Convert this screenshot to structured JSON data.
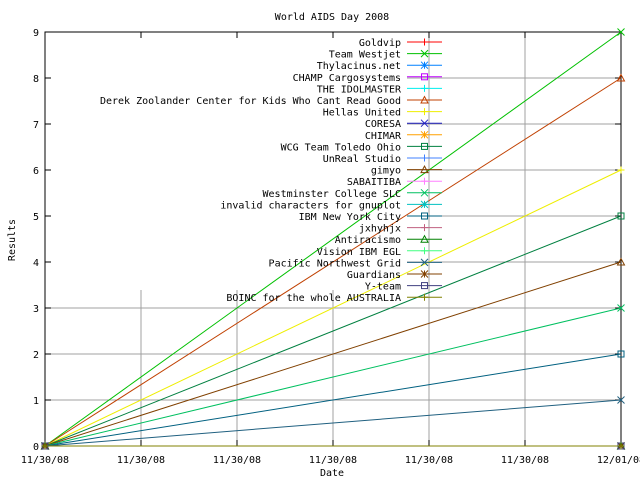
{
  "chart_data": {
    "type": "line",
    "title": "World AIDS Day 2008",
    "xlabel": "Date",
    "ylabel": "Results",
    "x_ticks": [
      "11/30/08",
      "11/30/08",
      "11/30/08",
      "11/30/08",
      "11/30/08",
      "11/30/08",
      "12/01/08"
    ],
    "y_ticks": [
      "0",
      "1",
      "2",
      "3",
      "4",
      "5",
      "6",
      "7",
      "8",
      "9"
    ],
    "ylim": [
      0,
      9
    ],
    "xlim": [
      0,
      1
    ],
    "grid": true,
    "legend_position": "top-right inside",
    "series": [
      {
        "name": "Goldvip",
        "color": "#ff0000",
        "marker": "plus",
        "x": [
          0,
          1
        ],
        "y": [
          0,
          0
        ]
      },
      {
        "name": "Team Westjet",
        "color": "#00c000",
        "marker": "cross",
        "x": [
          0,
          1
        ],
        "y": [
          0,
          9
        ]
      },
      {
        "name": "Thylacinus.net",
        "color": "#0080ff",
        "marker": "star",
        "x": [
          0,
          1
        ],
        "y": [
          0,
          0
        ]
      },
      {
        "name": "CHAMP Cargosystems",
        "color": "#c000ff",
        "marker": "box",
        "x": [
          0,
          1
        ],
        "y": [
          0,
          0
        ]
      },
      {
        "name": "THE IDOLMASTER",
        "color": "#00eeee",
        "marker": "plus",
        "x": [
          0,
          1
        ],
        "y": [
          0,
          0
        ]
      },
      {
        "name": "Derek Zoolander Center for Kids Who Cant Read Good",
        "color": "#c04000",
        "marker": "triangle",
        "x": [
          0,
          1
        ],
        "y": [
          0,
          8
        ]
      },
      {
        "name": "Hellas United",
        "color": "#eeee00",
        "marker": "plus",
        "x": [
          0,
          1
        ],
        "y": [
          0,
          6
        ]
      },
      {
        "name": "CORESA",
        "color": "#2020c0",
        "marker": "cross",
        "x": [
          0,
          1
        ],
        "y": [
          0,
          0
        ]
      },
      {
        "name": "CHIMAR",
        "color": "#ffa000",
        "marker": "star",
        "x": [
          0,
          1
        ],
        "y": [
          0,
          0
        ]
      },
      {
        "name": "WCG Team Toledo Ohio",
        "color": "#008040",
        "marker": "box",
        "x": [
          0,
          1
        ],
        "y": [
          0,
          5
        ]
      },
      {
        "name": "UnReal Studio",
        "color": "#4080ff",
        "marker": "plus",
        "x": [
          0,
          1
        ],
        "y": [
          0,
          0
        ]
      },
      {
        "name": "gimyo",
        "color": "#804000",
        "marker": "triangle",
        "x": [
          0,
          1
        ],
        "y": [
          0,
          4
        ]
      },
      {
        "name": "SABAITIBA",
        "color": "#ff80ff",
        "marker": "plus",
        "x": [
          0,
          1
        ],
        "y": [
          0,
          0
        ]
      },
      {
        "name": "Westminster College SLC",
        "color": "#00c060",
        "marker": "cross",
        "x": [
          0,
          1
        ],
        "y": [
          0,
          3
        ]
      },
      {
        "name": "invalid characters for gnuplot",
        "color": "#00c0c0",
        "marker": "star",
        "x": [
          0,
          1
        ],
        "y": [
          0,
          0
        ]
      },
      {
        "name": "IBM New York City",
        "color": "#006080",
        "marker": "box",
        "x": [
          0,
          1
        ],
        "y": [
          0,
          2
        ]
      },
      {
        "name": "jxhyhjx",
        "color": "#c06080",
        "marker": "plus",
        "x": [
          0,
          1
        ],
        "y": [
          0,
          0
        ]
      },
      {
        "name": "Antiracismo",
        "color": "#008000",
        "marker": "triangle",
        "x": [
          0,
          1
        ],
        "y": [
          0,
          0
        ]
      },
      {
        "name": "Vision IBM EGL",
        "color": "#40ff80",
        "marker": "plus",
        "x": [
          0,
          1
        ],
        "y": [
          0,
          0
        ]
      },
      {
        "name": "Pacific Northwest Grid",
        "color": "#206080",
        "marker": "cross",
        "x": [
          0,
          1
        ],
        "y": [
          0,
          1
        ]
      },
      {
        "name": "Guardians",
        "color": "#804000",
        "marker": "star",
        "x": [
          0,
          1
        ],
        "y": [
          0,
          0
        ]
      },
      {
        "name": "Y-team",
        "color": "#404080",
        "marker": "box",
        "x": [
          0,
          1
        ],
        "y": [
          0,
          0
        ]
      },
      {
        "name": "BOINC for the whole AUSTRALIA",
        "color": "#808000",
        "marker": "plus",
        "x": [
          0,
          1
        ],
        "y": [
          0,
          0
        ]
      }
    ]
  }
}
